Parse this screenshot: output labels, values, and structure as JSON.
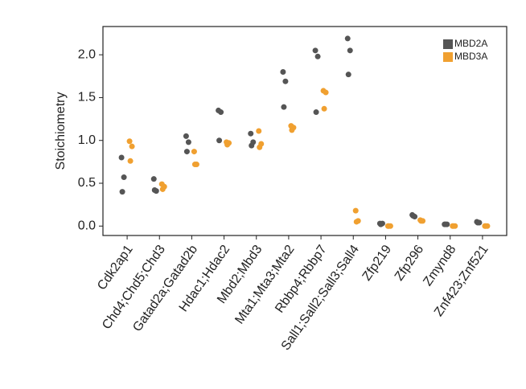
{
  "chart_data": {
    "type": "strip",
    "y_label": "Stoichiometry",
    "categories": [
      "Cdk2ap1",
      "Chd4;Chd5;Chd3",
      "Gatad2a;Gatad2b",
      "Hdac1;Hdac2",
      "Mbd2;Mbd3",
      "Mta1;Mta3;Mta2",
      "Rbbp4;Rbbp7",
      "Sall1;Sall2;Sall3;Sall4",
      "Zfp219",
      "Zfp296",
      "Zmynd8",
      "Znf423;Znf521"
    ],
    "series": [
      {
        "name": "MBD2A",
        "color": "#555555",
        "values": [
          [
            0.8,
            0.57,
            0.4
          ],
          [
            0.55,
            0.41,
            0.42
          ],
          [
            1.05,
            0.98,
            0.87
          ],
          [
            1.35,
            1.33,
            1.0
          ],
          [
            1.08,
            0.98,
            0.94
          ],
          [
            1.8,
            1.69,
            1.39
          ],
          [
            2.05,
            1.98,
            1.33
          ],
          [
            2.19,
            2.05,
            1.77
          ],
          [
            0.03,
            0.03,
            0.02
          ],
          [
            0.13,
            0.11,
            0.12
          ],
          [
            0.02,
            0.02,
            0.02
          ],
          [
            0.05,
            0.04,
            0.04
          ]
        ]
      },
      {
        "name": "MBD3A",
        "color": "#f0a030",
        "values": [
          [
            0.99,
            0.93,
            0.76
          ],
          [
            0.49,
            0.46,
            0.43
          ],
          [
            0.87,
            0.72,
            0.72
          ],
          [
            0.98,
            0.97,
            0.95
          ],
          [
            1.11,
            0.96,
            0.92
          ],
          [
            1.17,
            1.15,
            1.12
          ],
          [
            1.58,
            1.56,
            1.37
          ],
          [
            0.18,
            0.06,
            0.05
          ],
          [
            0.0,
            0.0,
            0.0
          ],
          [
            0.07,
            0.06,
            0.06
          ],
          [
            0.0,
            0.0,
            0.0
          ],
          [
            0.0,
            0.0,
            0.0
          ]
        ]
      }
    ],
    "ylim": [
      -0.11,
      2.33
    ],
    "yticks": [
      {
        "value": 0,
        "label": "0.0"
      },
      0.5,
      {
        "value": 1,
        "label": "1.0"
      },
      1.5,
      {
        "value": 2,
        "label": "2.0"
      }
    ],
    "legend": "upper right"
  }
}
